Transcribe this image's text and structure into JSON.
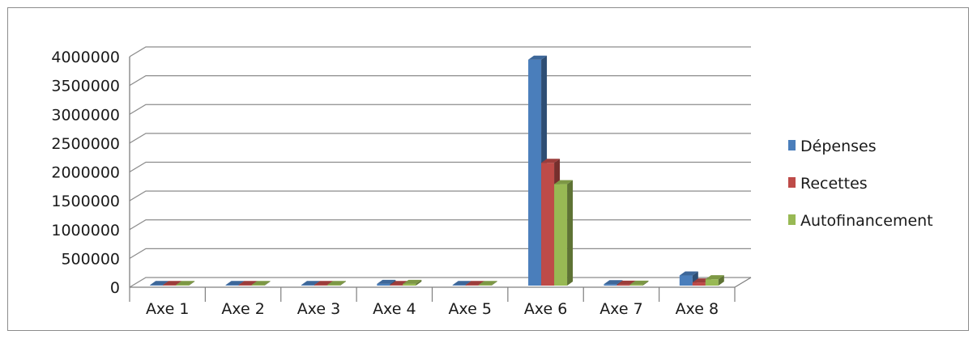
{
  "chart_data": {
    "type": "bar",
    "categories": [
      "Axe 1",
      "Axe 2",
      "Axe 3",
      "Axe 4",
      "Axe 5",
      "Axe 6",
      "Axe 7",
      "Axe 8"
    ],
    "series": [
      {
        "name": "Dépenses",
        "values": [
          10000,
          5000,
          5000,
          30000,
          5000,
          3920000,
          25000,
          175000
        ],
        "color": "#4a7ebb"
      },
      {
        "name": "Recettes",
        "values": [
          5000,
          5000,
          5000,
          10000,
          5000,
          2130000,
          15000,
          55000
        ],
        "color": "#be4b48"
      },
      {
        "name": "Autofinancement",
        "values": [
          5000,
          5000,
          5000,
          30000,
          5000,
          1760000,
          15000,
          110000
        ],
        "color": "#98b954"
      }
    ],
    "yticks": [
      "0",
      "500000",
      "1000000",
      "1500000",
      "2000000",
      "2500000",
      "3000000",
      "3500000",
      "4000000"
    ],
    "ylim": [
      0,
      4000000
    ],
    "grid": true,
    "legend_position": "right",
    "style": "3d-clustered-column"
  }
}
